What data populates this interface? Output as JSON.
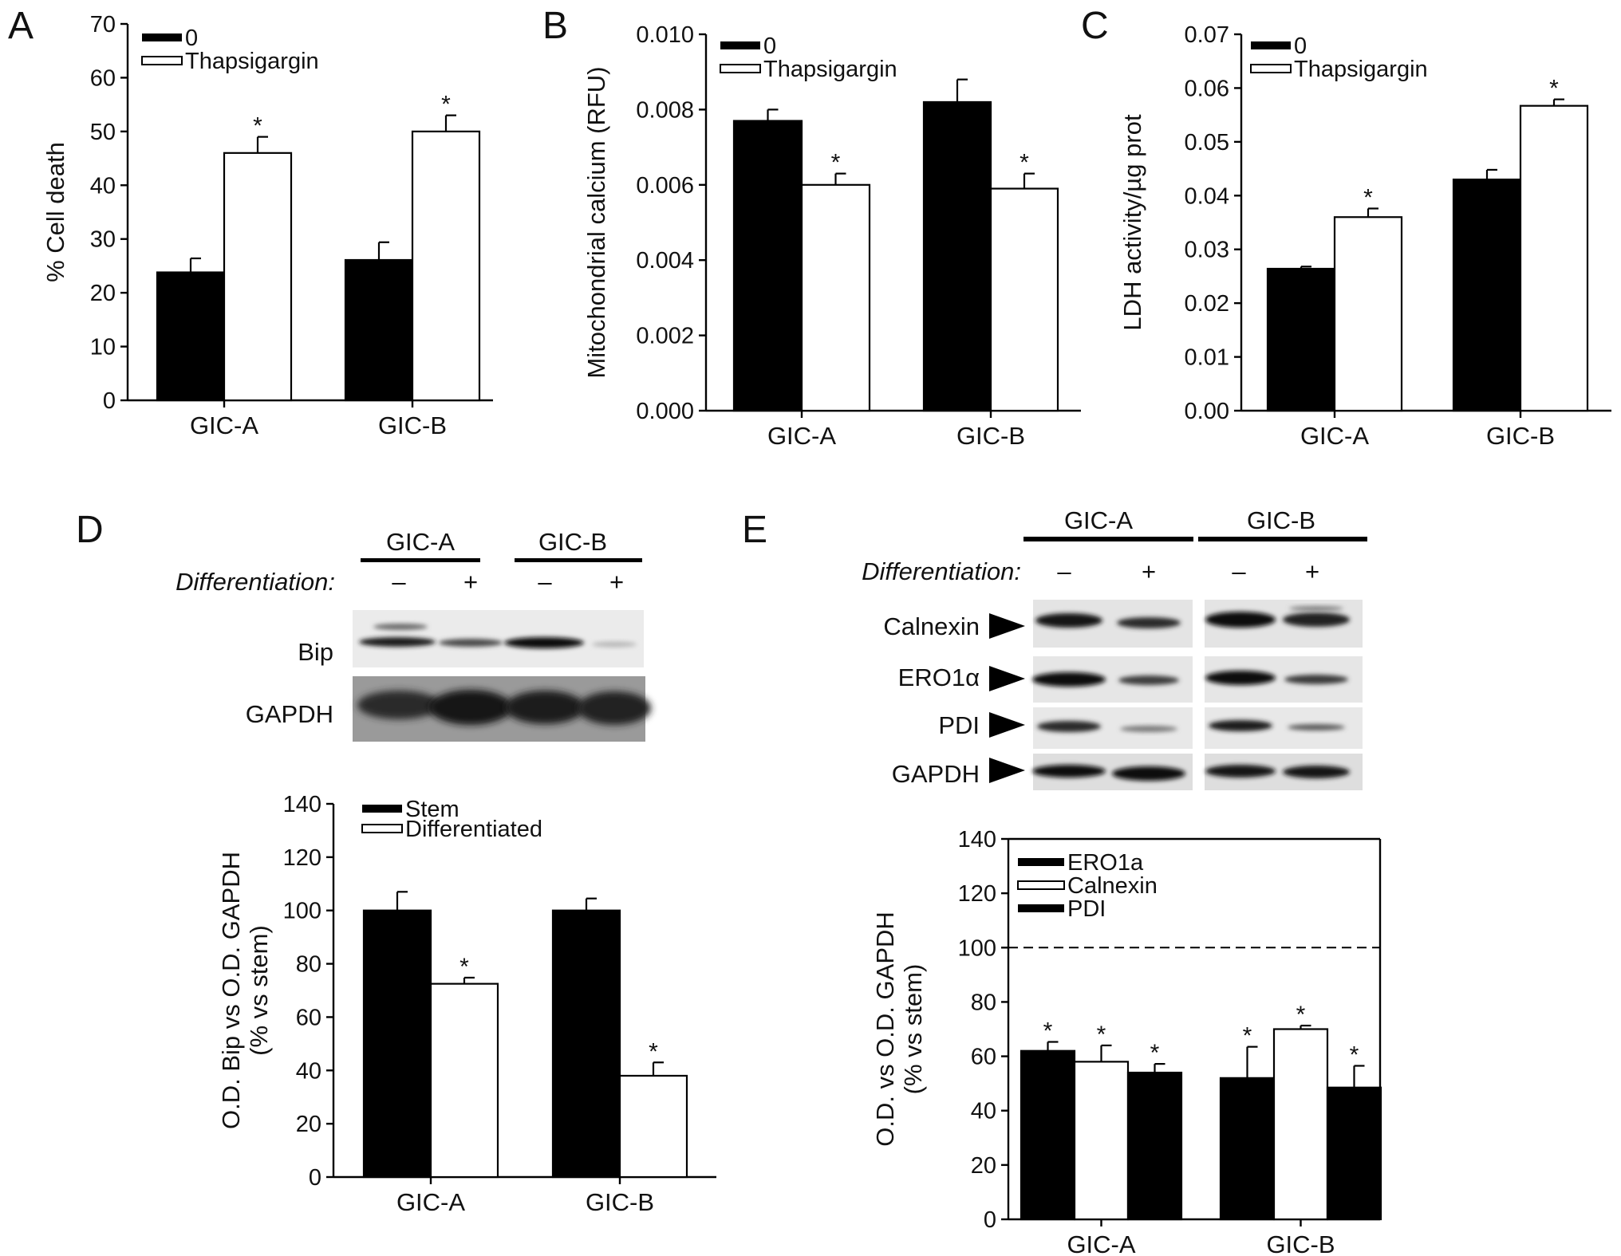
{
  "figure": {
    "panel_letters": [
      "A",
      "B",
      "C",
      "D",
      "E"
    ],
    "blot_d": {
      "groups": [
        "GIC-A",
        "GIC-B"
      ],
      "row_label": "Differentiation:",
      "signs": [
        "–",
        "+",
        "–",
        "+"
      ],
      "bands": [
        "Bip",
        "GAPDH"
      ]
    },
    "blot_e": {
      "groups": [
        "GIC-A",
        "GIC-B"
      ],
      "row_label": "Differentiation:",
      "signs": [
        "–",
        "+",
        "–",
        "+"
      ],
      "bands": [
        "Calnexin",
        "ERO1α",
        "PDI",
        "GAPDH"
      ]
    }
  },
  "colors": {
    "black": "#000000",
    "white": "#ffffff"
  },
  "chart_data": [
    {
      "panel": "A",
      "type": "bar",
      "categories": [
        "GIC-A",
        "GIC-B"
      ],
      "series": [
        {
          "name": "0",
          "fill": "black",
          "values": [
            23.8,
            26.1
          ],
          "errors": [
            2.6,
            3.3
          ],
          "sig": [
            false,
            false
          ]
        },
        {
          "name": "Thapsigargin",
          "fill": "white",
          "values": [
            46.0,
            50.0
          ],
          "errors": [
            3.0,
            3.0
          ],
          "sig": [
            true,
            true
          ]
        }
      ],
      "xlabel": "",
      "ylabel": "% Cell death",
      "ylim": [
        0,
        70
      ],
      "ticks": [
        "0",
        "10",
        "20",
        "30",
        "40",
        "50",
        "60",
        "70"
      ],
      "legend": "top-left",
      "grid": false
    },
    {
      "panel": "B",
      "type": "bar",
      "categories": [
        "GIC-A",
        "GIC-B"
      ],
      "series": [
        {
          "name": "0",
          "fill": "black",
          "values": [
            0.0077,
            0.0082
          ],
          "errors": [
            0.0003,
            0.0006
          ],
          "sig": [
            false,
            false
          ]
        },
        {
          "name": "Thapsigargin",
          "fill": "white",
          "values": [
            0.006,
            0.0059
          ],
          "errors": [
            0.0003,
            0.0004
          ],
          "sig": [
            true,
            true
          ]
        }
      ],
      "xlabel": "",
      "ylabel": "Mitochondrial calcium (RFU)",
      "ylim": [
        0,
        0.01
      ],
      "ticks": [
        "0.000",
        "0.002",
        "0.004",
        "0.006",
        "0.008",
        "0.010"
      ],
      "legend": "top-left",
      "grid": false
    },
    {
      "panel": "C",
      "type": "bar",
      "categories": [
        "GIC-A",
        "GIC-B"
      ],
      "series": [
        {
          "name": "0",
          "fill": "black",
          "values": [
            0.0264,
            0.043
          ],
          "errors": [
            0.0004,
            0.0018
          ],
          "sig": [
            false,
            false
          ]
        },
        {
          "name": "Thapsigargin",
          "fill": "white",
          "values": [
            0.036,
            0.0567
          ],
          "errors": [
            0.0016,
            0.0012
          ],
          "sig": [
            true,
            true
          ]
        }
      ],
      "xlabel": "",
      "ylabel": "LDH activity/µg prot",
      "ylim": [
        0,
        0.07
      ],
      "ticks": [
        "0.00",
        "0.01",
        "0.02",
        "0.03",
        "0.04",
        "0.05",
        "0.06",
        "0.07"
      ],
      "legend": "top-left",
      "grid": false
    },
    {
      "panel": "D",
      "type": "bar",
      "categories": [
        "GIC-A",
        "GIC-B"
      ],
      "series": [
        {
          "name": "Stem",
          "fill": "black",
          "values": [
            100,
            100
          ],
          "errors": [
            7,
            4.5
          ],
          "sig": [
            false,
            false
          ]
        },
        {
          "name": "Differentiated",
          "fill": "white",
          "values": [
            72.5,
            38
          ],
          "errors": [
            2.3,
            5
          ],
          "sig": [
            true,
            true
          ]
        }
      ],
      "xlabel": "",
      "ylabel": "O.D. Bip vs O.D. GAPDH",
      "ylabel2": "(% vs stem)",
      "ylim": [
        0,
        140
      ],
      "ticks": [
        "0",
        "20",
        "40",
        "60",
        "80",
        "100",
        "120",
        "140"
      ],
      "legend": "top-left",
      "grid": false
    },
    {
      "panel": "E",
      "type": "bar",
      "categories": [
        "GIC-A",
        "GIC-B"
      ],
      "series": [
        {
          "name": "ERO1a",
          "fill": "black",
          "values": [
            62,
            52
          ],
          "errors": [
            3.3,
            11.5
          ],
          "sig": [
            true,
            true
          ]
        },
        {
          "name": "Calnexin",
          "fill": "white",
          "values": [
            58,
            70
          ],
          "errors": [
            6,
            1.3
          ],
          "sig": [
            true,
            true
          ]
        },
        {
          "name": "PDI",
          "fill": "black",
          "values": [
            54,
            48.5
          ],
          "errors": [
            3.2,
            8
          ],
          "sig": [
            true,
            true
          ]
        }
      ],
      "xlabel": "",
      "ylabel": "O.D. vs O.D. GAPDH",
      "ylabel2": "(% vs stem)",
      "ylim": [
        0,
        140
      ],
      "ticks": [
        "0",
        "20",
        "40",
        "60",
        "80",
        "100",
        "120",
        "140"
      ],
      "reference_line": 100,
      "boxed": true,
      "legend": "top-left",
      "grid": false
    }
  ]
}
